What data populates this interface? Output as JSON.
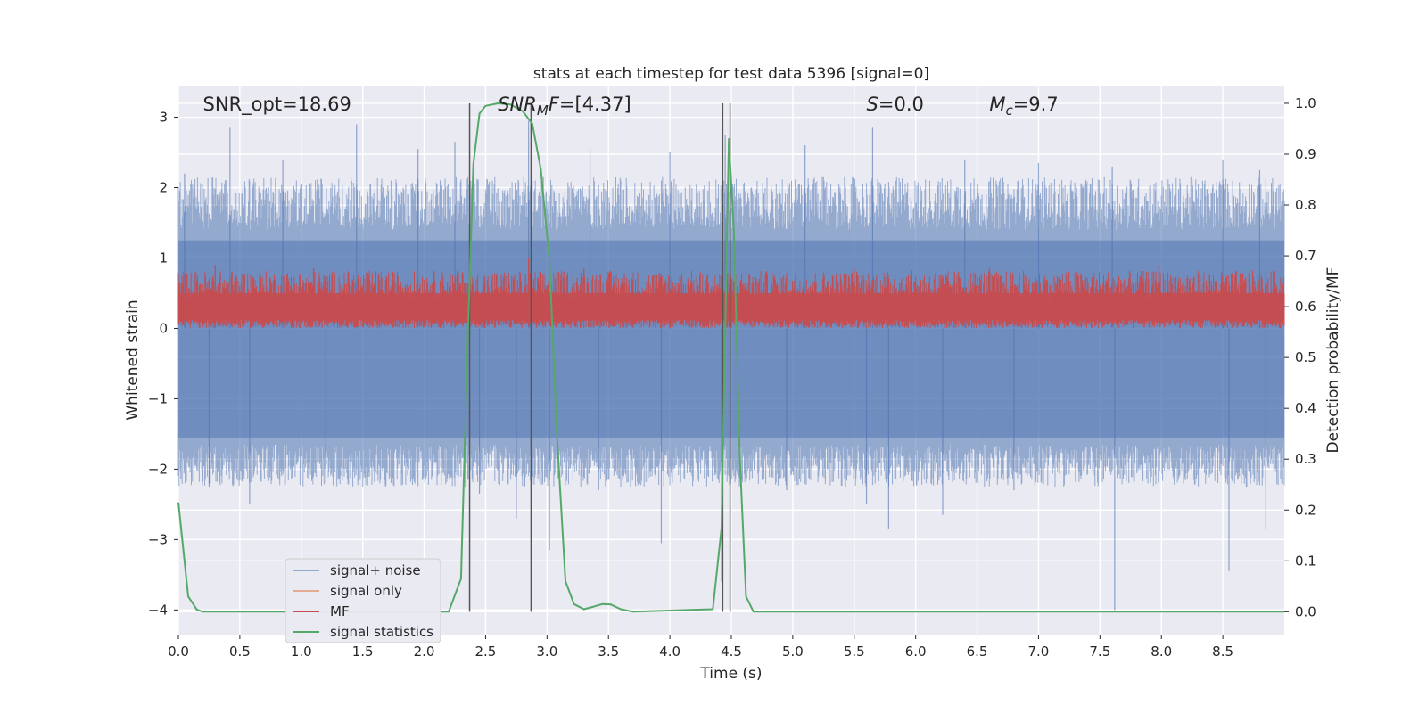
{
  "chart_data": {
    "type": "line",
    "title": "stats at each timestep for test data 5396 [signal=0]",
    "xlabel": "Time (s)",
    "ylabel_left": "Whitened strain",
    "ylabel_right": "Detection probability/MF",
    "xlim": [
      0.0,
      9.0
    ],
    "ylim_left": [
      -4.35,
      3.45
    ],
    "ylim_right": [
      -0.045,
      1.035
    ],
    "x_ticks": [
      0.0,
      0.5,
      1.0,
      1.5,
      2.0,
      2.5,
      3.0,
      3.5,
      4.0,
      4.5,
      5.0,
      5.5,
      6.0,
      6.5,
      7.0,
      7.5,
      8.0,
      8.5
    ],
    "x_tick_labels": [
      "0.0",
      "0.5",
      "1.0",
      "1.5",
      "2.0",
      "2.5",
      "3.0",
      "3.5",
      "4.0",
      "4.5",
      "5.0",
      "5.5",
      "6.0",
      "6.5",
      "7.0",
      "7.5",
      "8.0",
      "8.5"
    ],
    "y_left_ticks": [
      -4,
      -3,
      -2,
      -1,
      0,
      1,
      2,
      3
    ],
    "y_left_tick_labels": [
      "−4",
      "−3",
      "−2",
      "−1",
      "0",
      "1",
      "2",
      "3"
    ],
    "y_right_ticks": [
      0.0,
      0.1,
      0.2,
      0.3,
      0.4,
      0.5,
      0.6,
      0.7,
      0.8,
      0.9,
      1.0
    ],
    "y_right_tick_labels": [
      "0.0",
      "0.1",
      "0.2",
      "0.3",
      "0.4",
      "0.5",
      "0.6",
      "0.7",
      "0.8",
      "0.9",
      "1.0"
    ],
    "grid": true,
    "legend_position": "lower-left",
    "annotations": [
      {
        "name": "snr-opt",
        "text": "SNR_opt=18.69",
        "italic_prefix": "",
        "sub": "",
        "rest": "",
        "x": 0.2
      },
      {
        "name": "snr-mf",
        "text": "",
        "italic_prefix": "SNR",
        "sub": "M",
        "rest": "F=[4.37]",
        "x": 2.6
      },
      {
        "name": "s-value",
        "text": "",
        "italic_prefix": "S",
        "sub": "",
        "rest": "=0.0",
        "x": 5.6
      },
      {
        "name": "chirp-mass",
        "text": "",
        "italic_prefix": "M",
        "sub": "c",
        "rest": "=9.7",
        "x": 6.6
      }
    ],
    "vertical_markers": [
      2.37,
      2.87,
      4.43,
      4.49
    ],
    "noise_band": {
      "lower": -1.55,
      "upper": 1.25
    },
    "mf_band": {
      "lower": 0.0,
      "upper": 0.65
    },
    "series": [
      {
        "name": "signal+ noise",
        "color": "#4c72b0",
        "axis": "left",
        "peaks_high": [
          [
            0.05,
            2.2
          ],
          [
            0.42,
            2.85
          ],
          [
            0.85,
            2.4
          ],
          [
            1.45,
            2.9
          ],
          [
            1.95,
            2.55
          ],
          [
            2.25,
            2.65
          ],
          [
            2.85,
            2.95
          ],
          [
            3.35,
            2.55
          ],
          [
            4.0,
            2.5
          ],
          [
            4.45,
            2.75
          ],
          [
            5.1,
            2.6
          ],
          [
            5.65,
            2.85
          ],
          [
            6.4,
            2.4
          ],
          [
            7.0,
            2.35
          ],
          [
            7.6,
            2.3
          ],
          [
            8.5,
            2.4
          ],
          [
            8.8,
            2.25
          ]
        ],
        "peaks_low": [
          [
            0.25,
            -2.25
          ],
          [
            0.58,
            -2.5
          ],
          [
            1.2,
            -2.2
          ],
          [
            2.45,
            -2.35
          ],
          [
            2.75,
            -2.7
          ],
          [
            3.02,
            -3.15
          ],
          [
            3.42,
            -2.3
          ],
          [
            3.93,
            -3.05
          ],
          [
            4.42,
            -3.6
          ],
          [
            4.95,
            -2.3
          ],
          [
            5.6,
            -2.5
          ],
          [
            5.78,
            -2.85
          ],
          [
            6.22,
            -2.65
          ],
          [
            6.8,
            -2.3
          ],
          [
            7.62,
            -4.0
          ],
          [
            8.55,
            -3.45
          ],
          [
            8.85,
            -2.85
          ]
        ]
      },
      {
        "name": "signal only",
        "color": "#dd8452",
        "axis": "left",
        "values": []
      },
      {
        "name": "MF",
        "color": "#c44e52",
        "axis": "left",
        "peaks": [
          [
            0.3,
            0.9
          ],
          [
            1.1,
            0.85
          ],
          [
            2.85,
            1.0
          ],
          [
            3.3,
            0.85
          ],
          [
            5.5,
            0.85
          ],
          [
            6.6,
            0.85
          ],
          [
            7.98,
            0.9
          ]
        ]
      },
      {
        "name": "signal statistics",
        "color": "#55a868",
        "axis": "right",
        "x": [
          0.0,
          0.08,
          0.15,
          0.2,
          2.2,
          2.3,
          2.35,
          2.4,
          2.45,
          2.5,
          2.6,
          2.7,
          2.8,
          2.88,
          2.95,
          3.02,
          3.08,
          3.15,
          3.22,
          3.3,
          3.38,
          3.45,
          3.52,
          3.6,
          3.7,
          4.35,
          4.42,
          4.48,
          4.52,
          4.57,
          4.62,
          4.68,
          9.0
        ],
        "values": [
          0.215,
          0.03,
          0.004,
          0.0,
          0.0,
          0.065,
          0.5,
          0.88,
          0.98,
          0.995,
          1.0,
          0.998,
          0.985,
          0.96,
          0.87,
          0.69,
          0.35,
          0.06,
          0.015,
          0.005,
          0.01,
          0.015,
          0.014,
          0.005,
          0.0,
          0.005,
          0.165,
          0.93,
          0.75,
          0.3,
          0.03,
          0.0,
          0.0
        ]
      }
    ]
  }
}
